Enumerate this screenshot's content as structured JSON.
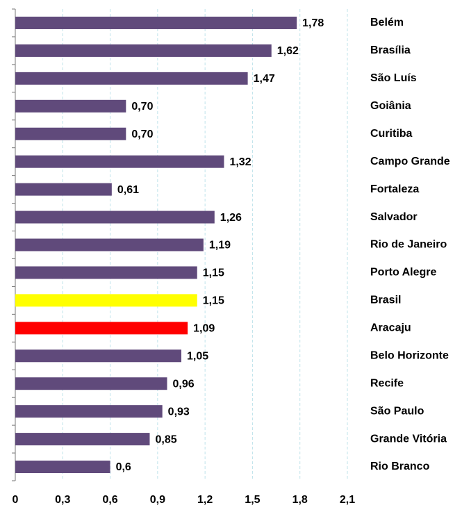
{
  "chart_data": {
    "type": "barh",
    "categories": [
      "Belém",
      "Brasília",
      "São Luís",
      "Goiânia",
      "Curitiba",
      "Campo Grande",
      "Fortaleza",
      "Salvador",
      "Rio de Janeiro",
      "Porto Alegre",
      "Brasil",
      "Aracaju",
      "Belo Horizonte",
      "Recife",
      "São Paulo",
      "Grande Vitória",
      "Rio Branco"
    ],
    "values": [
      1.78,
      1.62,
      1.47,
      0.7,
      0.7,
      1.32,
      0.61,
      1.26,
      1.19,
      1.15,
      1.15,
      1.09,
      1.05,
      0.96,
      0.93,
      0.85,
      0.6
    ],
    "value_labels": [
      "1,78",
      "1,62",
      "1,47",
      "0,70",
      "0,70",
      "1,32",
      "0,61",
      "1,26",
      "1,19",
      "1,15",
      "1,15",
      "1,09",
      "1,05",
      "0,96",
      "0,93",
      "0,85",
      "0,6"
    ],
    "colors": [
      "#604a7b",
      "#604a7b",
      "#604a7b",
      "#604a7b",
      "#604a7b",
      "#604a7b",
      "#604a7b",
      "#604a7b",
      "#604a7b",
      "#604a7b",
      "#ffff00",
      "#ff0000",
      "#604a7b",
      "#604a7b",
      "#604a7b",
      "#604a7b",
      "#604a7b"
    ],
    "xlim": [
      0,
      2.1
    ],
    "xticks": [
      0,
      {
        "value": 0.3,
        "label": "0,3"
      },
      {
        "value": 0.6,
        "label": "0,6"
      },
      {
        "value": 0.9,
        "label": "0,9"
      },
      {
        "value": 1.2,
        "label": "1,2"
      },
      {
        "value": 1.5,
        "label": "1,5"
      },
      {
        "value": 1.8,
        "label": "1,8"
      },
      {
        "value": 2.1,
        "label": "2,1"
      }
    ],
    "grid": true
  }
}
